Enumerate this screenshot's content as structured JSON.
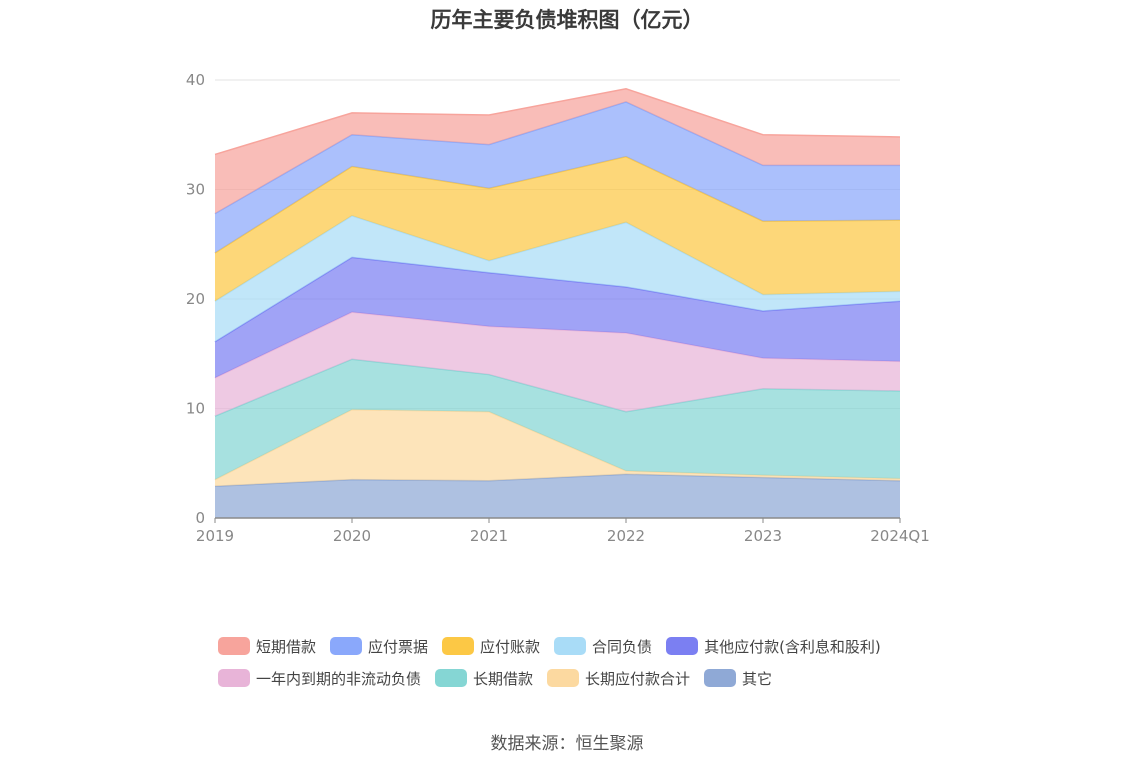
{
  "title": "历年主要负债堆积图（亿元）",
  "source": "数据来源：恒生聚源",
  "chart_data": {
    "type": "area",
    "stacked": true,
    "title": "历年主要负债堆积图（亿元）",
    "x": [
      "2019",
      "2020",
      "2021",
      "2022",
      "2023",
      "2024Q1"
    ],
    "ylim": [
      0,
      40
    ],
    "yticks": [
      0,
      10,
      20,
      30,
      40
    ],
    "grid": "horizontal",
    "legend_position": "bottom",
    "series": [
      {
        "name": "其它",
        "color": "#8fa9d6",
        "values": [
          2.9,
          3.5,
          3.4,
          4.0,
          3.7,
          3.4
        ]
      },
      {
        "name": "长期应付款合计",
        "color": "#fcd9a0",
        "values": [
          0.6,
          6.4,
          6.3,
          0.3,
          0.2,
          0.2
        ]
      },
      {
        "name": "长期借款",
        "color": "#85d6d4",
        "values": [
          5.8,
          4.6,
          3.4,
          5.4,
          7.9,
          8.0
        ]
      },
      {
        "name": "一年内到期的非流动负债",
        "color": "#e8b4d8",
        "values": [
          3.5,
          4.3,
          4.4,
          7.2,
          2.8,
          2.7
        ]
      },
      {
        "name": "其他应付款(含利息和股利)",
        "color": "#7b7ff2",
        "values": [
          3.3,
          5.0,
          4.9,
          4.2,
          4.3,
          5.5
        ]
      },
      {
        "name": "合同负债",
        "color": "#a9dcf7",
        "values": [
          3.7,
          3.8,
          1.1,
          5.9,
          1.5,
          0.9
        ]
      },
      {
        "name": "应付账款",
        "color": "#fcc845",
        "values": [
          4.4,
          4.5,
          6.6,
          6.0,
          6.7,
          6.5
        ]
      },
      {
        "name": "应付票据",
        "color": "#8aa8fb",
        "values": [
          3.6,
          2.9,
          4.0,
          5.0,
          5.1,
          5.0
        ]
      },
      {
        "name": "短期借款",
        "color": "#f7a49c",
        "values": [
          5.4,
          2.0,
          2.7,
          1.2,
          2.8,
          2.6
        ]
      }
    ]
  },
  "legend": {
    "rows": [
      [
        {
          "label": "短期借款",
          "color": "#f7a49c"
        },
        {
          "label": "应付票据",
          "color": "#8aa8fb"
        },
        {
          "label": "应付账款",
          "color": "#fcc845"
        },
        {
          "label": "合同负债",
          "color": "#a9dcf7"
        },
        {
          "label": "其他应付款(含利息和股利)",
          "color": "#7b7ff2"
        }
      ],
      [
        {
          "label": "一年内到期的非流动负债",
          "color": "#e8b4d8"
        },
        {
          "label": "长期借款",
          "color": "#85d6d4"
        },
        {
          "label": "长期应付款合计",
          "color": "#fcd9a0"
        },
        {
          "label": "其它",
          "color": "#8fa9d6"
        }
      ]
    ]
  }
}
